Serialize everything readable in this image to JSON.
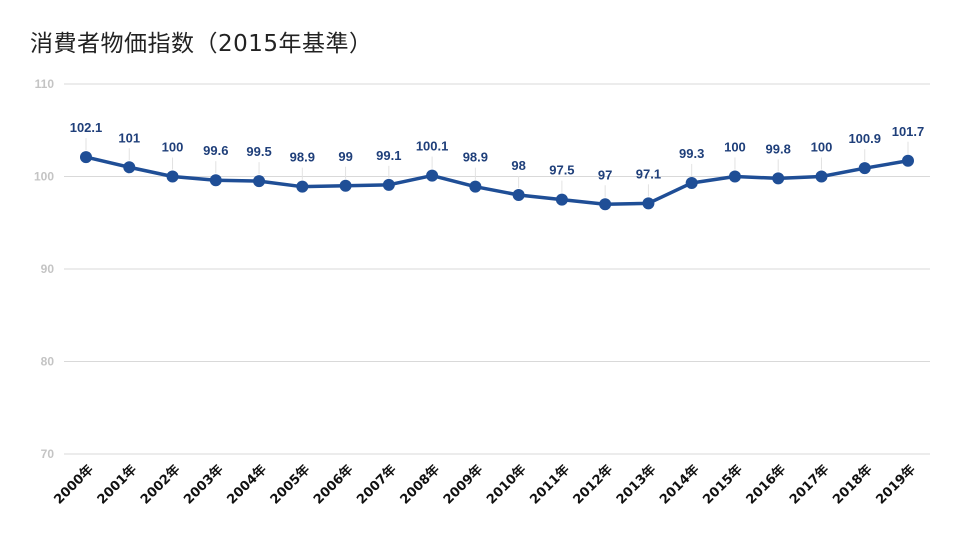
{
  "chart_data": {
    "type": "line",
    "title": "消費者物価指数（2015年基準）",
    "xlabel": "",
    "ylabel": "",
    "ylim": [
      70,
      110
    ],
    "yticks": [
      70,
      80,
      90,
      100,
      110
    ],
    "grid": true,
    "color": "#1f4e96",
    "categories": [
      "2000年",
      "2001年",
      "2002年",
      "2003年",
      "2004年",
      "2005年",
      "2006年",
      "2007年",
      "2008年",
      "2009年",
      "2010年",
      "2011年",
      "2012年",
      "2013年",
      "2014年",
      "2015年",
      "2016年",
      "2017年",
      "2018年",
      "2019年"
    ],
    "values": [
      102.1,
      101,
      100,
      99.6,
      99.5,
      98.9,
      99,
      99.1,
      100.1,
      98.9,
      98,
      97.5,
      97,
      97.1,
      99.3,
      100,
      99.8,
      100,
      100.9,
      101.7
    ],
    "labels": [
      "102.1",
      "101",
      "100",
      "99.6",
      "99.5",
      "98.9",
      "99",
      "99.1",
      "100.1",
      "98.9",
      "98",
      "97.5",
      "97",
      "97.1",
      "99.3",
      "100",
      "99.8",
      "100",
      "100.9",
      "101.7"
    ]
  }
}
